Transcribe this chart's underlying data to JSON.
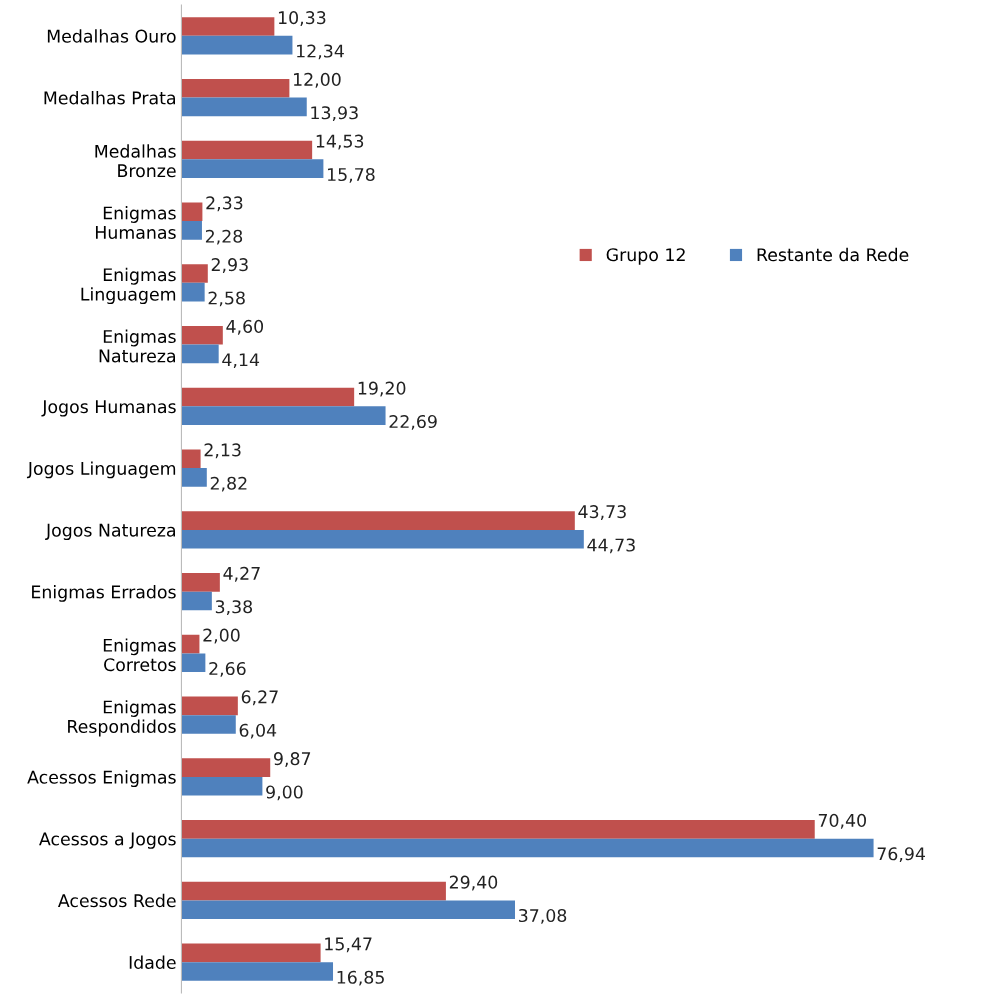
{
  "chart_data": {
    "type": "bar",
    "orientation": "horizontal",
    "categories": [
      "Medalhas Ouro",
      "Medalhas Prata",
      "Medalhas\nBronze",
      "Enigmas\nHumanas",
      "Enigmas\nLinguagem",
      "Enigmas\nNatureza",
      "Jogos Humanas",
      "Jogos Linguagem",
      "Jogos Natureza",
      "Enigmas Errados",
      "Enigmas\nCorretos",
      "Enigmas\nRespondidos",
      "Acessos Enigmas",
      "Acessos a Jogos",
      "Acessos Rede",
      "Idade"
    ],
    "series": [
      {
        "name": "Grupo 12",
        "color": "#c0504d",
        "values": [
          10.33,
          12.0,
          14.53,
          2.33,
          2.93,
          4.6,
          19.2,
          2.13,
          43.73,
          4.27,
          2.0,
          6.27,
          9.87,
          70.4,
          29.4,
          15.47
        ],
        "value_labels": [
          "10,33",
          "12,00",
          "14,53",
          "2,33",
          "2,93",
          "4,60",
          "19,20",
          "2,13",
          "43,73",
          "4,27",
          "2,00",
          "6,27",
          "9,87",
          "70,40",
          "29,40",
          "15,47"
        ]
      },
      {
        "name": "Restante da Rede",
        "color": "#4f81bd",
        "values": [
          12.34,
          13.93,
          15.78,
          2.28,
          2.58,
          4.14,
          22.69,
          2.82,
          44.73,
          3.38,
          2.66,
          6.04,
          9.0,
          76.94,
          37.08,
          16.85
        ],
        "value_labels": [
          "12,34",
          "13,93",
          "15,78",
          "2,28",
          "2,58",
          "4,14",
          "22,69",
          "2,82",
          "44,73",
          "3,38",
          "2,66",
          "6,04",
          "9,00",
          "76,94",
          "37,08",
          "16,85"
        ]
      }
    ],
    "tick_labels": "y",
    "grid": false,
    "legend": "top right"
  }
}
